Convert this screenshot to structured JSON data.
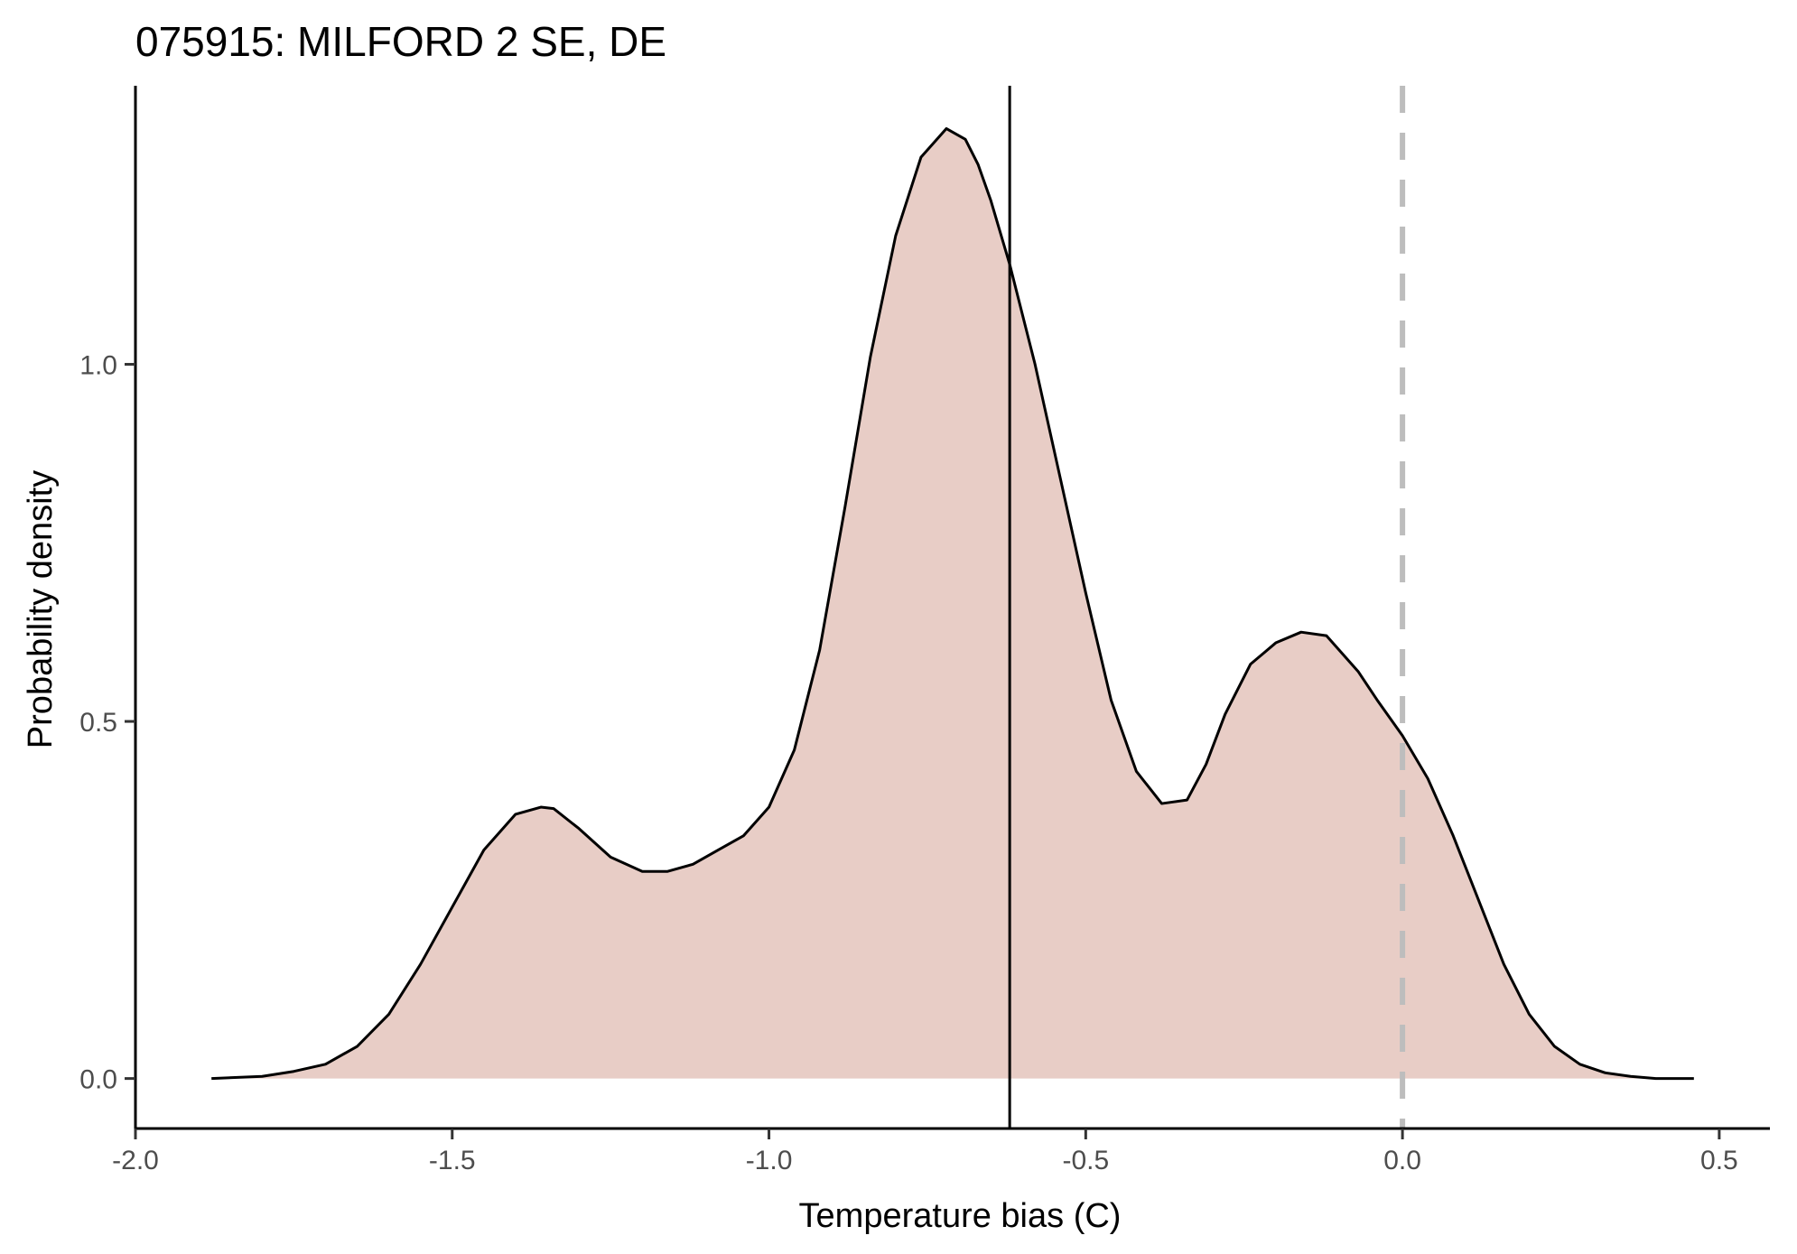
{
  "chart_data": {
    "type": "area",
    "title": "075915: MILFORD 2 SE, DE",
    "xlabel": "Temperature bias (C)",
    "ylabel": "Probability density",
    "xlim": [
      -2.0,
      0.58
    ],
    "ylim": [
      -0.07,
      1.39
    ],
    "x_ticks": [
      -2.0,
      -1.5,
      -1.0,
      -0.5,
      0.0,
      0.5
    ],
    "x_tick_labels": [
      "-2.0",
      "-1.5",
      "-1.0",
      "-0.5",
      "0.0",
      "0.5"
    ],
    "y_ticks": [
      0.0,
      0.5,
      1.0
    ],
    "y_tick_labels": [
      "0.0",
      "0.5",
      "1.0"
    ],
    "grid": false,
    "legend": "none",
    "series": [
      {
        "x": [
          -1.88,
          -1.8,
          -1.75,
          -1.7,
          -1.65,
          -1.6,
          -1.55,
          -1.5,
          -1.45,
          -1.4,
          -1.36,
          -1.34,
          -1.3,
          -1.25,
          -1.2,
          -1.16,
          -1.12,
          -1.08,
          -1.04,
          -1.0,
          -0.96,
          -0.92,
          -0.88,
          -0.84,
          -0.8,
          -0.76,
          -0.72,
          -0.69,
          -0.67,
          -0.65,
          -0.62,
          -0.58,
          -0.54,
          -0.5,
          -0.46,
          -0.42,
          -0.38,
          -0.34,
          -0.31,
          -0.28,
          -0.24,
          -0.2,
          -0.16,
          -0.12,
          -0.1,
          -0.07,
          -0.04,
          0.0,
          0.04,
          0.08,
          0.12,
          0.16,
          0.2,
          0.24,
          0.28,
          0.32,
          0.36,
          0.4,
          0.43,
          0.46
        ],
        "y": [
          0.0,
          0.003,
          0.01,
          0.02,
          0.045,
          0.09,
          0.16,
          0.24,
          0.32,
          0.37,
          0.38,
          0.378,
          0.35,
          0.31,
          0.29,
          0.29,
          0.3,
          0.32,
          0.34,
          0.38,
          0.46,
          0.6,
          0.8,
          1.01,
          1.18,
          1.29,
          1.33,
          1.315,
          1.28,
          1.23,
          1.14,
          1.0,
          0.84,
          0.68,
          0.53,
          0.43,
          0.385,
          0.39,
          0.44,
          0.51,
          0.58,
          0.61,
          0.625,
          0.62,
          0.6,
          0.57,
          0.53,
          0.48,
          0.42,
          0.34,
          0.25,
          0.16,
          0.09,
          0.045,
          0.02,
          0.008,
          0.003,
          0.0,
          0.0,
          0.0
        ],
        "fill": "#e8cdc6",
        "stroke": "#000000"
      }
    ],
    "reference_lines": [
      {
        "axis": "x",
        "value": -0.62,
        "style": "solid",
        "color": "#000000"
      },
      {
        "axis": "x",
        "value": 0.0,
        "style": "dashed",
        "color": "#bdbdbd"
      }
    ]
  }
}
